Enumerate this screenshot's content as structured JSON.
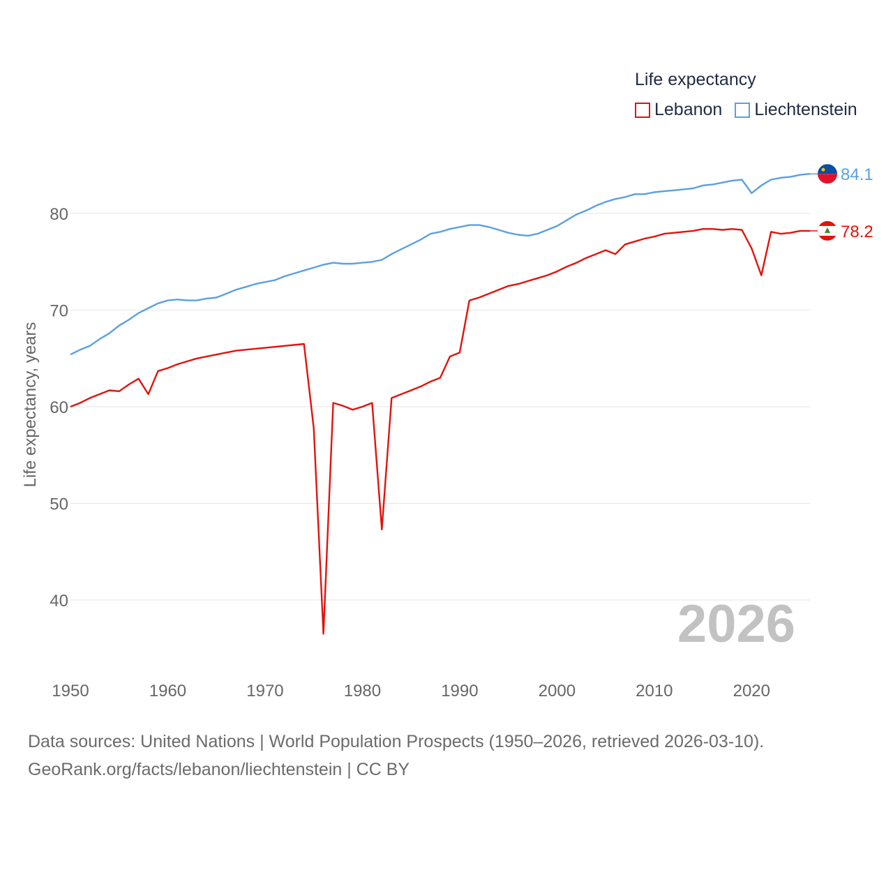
{
  "legend": {
    "title": "Life expectancy",
    "items": [
      {
        "label": "Lebanon",
        "color": "#e3120b"
      },
      {
        "label": "Liechtenstein",
        "color": "#5aa0e0"
      }
    ]
  },
  "source": {
    "line1": "Data sources: United Nations | World Population Prospects (1950–2026, retrieved 2026-03-10).",
    "line2": "GeoRank.org/facts/lebanon/liechtenstein | CC BY"
  },
  "chart_data": {
    "type": "line",
    "title": "Life expectancy",
    "ylabel": "Life expectancy, years",
    "xlabel": "",
    "year_label": "2026",
    "xlim": [
      1950,
      2026
    ],
    "ylim": [
      35,
      88
    ],
    "x_ticks": [
      1950,
      1960,
      1970,
      1980,
      1990,
      2000,
      2010,
      2020
    ],
    "y_ticks": [
      40,
      50,
      60,
      70,
      80
    ],
    "grid": true,
    "legend_position": "top-right",
    "series": [
      {
        "name": "Lebanon",
        "color": "#e3120b",
        "end_label": "78.2",
        "points": [
          [
            1950,
            60.0
          ],
          [
            1951,
            60.4
          ],
          [
            1952,
            60.9
          ],
          [
            1953,
            61.3
          ],
          [
            1954,
            61.7
          ],
          [
            1955,
            61.6
          ],
          [
            1956,
            62.3
          ],
          [
            1957,
            62.9
          ],
          [
            1958,
            61.3
          ],
          [
            1959,
            63.7
          ],
          [
            1960,
            64.0
          ],
          [
            1961,
            64.4
          ],
          [
            1962,
            64.7
          ],
          [
            1963,
            65.0
          ],
          [
            1965,
            65.4
          ],
          [
            1967,
            65.8
          ],
          [
            1974,
            66.5
          ],
          [
            1975,
            57.8
          ],
          [
            1976,
            36.5
          ],
          [
            1977,
            60.4
          ],
          [
            1978,
            60.1
          ],
          [
            1979,
            59.7
          ],
          [
            1980,
            60.0
          ],
          [
            1981,
            60.4
          ],
          [
            1982,
            47.3
          ],
          [
            1983,
            60.9
          ],
          [
            1984,
            61.3
          ],
          [
            1985,
            61.7
          ],
          [
            1986,
            62.1
          ],
          [
            1987,
            62.6
          ],
          [
            1988,
            63.0
          ],
          [
            1989,
            65.2
          ],
          [
            1990,
            65.6
          ],
          [
            1991,
            71.0
          ],
          [
            1992,
            71.3
          ],
          [
            1993,
            71.7
          ],
          [
            1994,
            72.1
          ],
          [
            1995,
            72.5
          ],
          [
            1996,
            72.7
          ],
          [
            1997,
            73.0
          ],
          [
            1998,
            73.3
          ],
          [
            1999,
            73.6
          ],
          [
            2000,
            74.0
          ],
          [
            2001,
            74.5
          ],
          [
            2002,
            74.9
          ],
          [
            2003,
            75.4
          ],
          [
            2004,
            75.8
          ],
          [
            2005,
            76.2
          ],
          [
            2006,
            75.8
          ],
          [
            2007,
            76.8
          ],
          [
            2008,
            77.1
          ],
          [
            2009,
            77.4
          ],
          [
            2010,
            77.6
          ],
          [
            2011,
            77.9
          ],
          [
            2012,
            78.0
          ],
          [
            2013,
            78.1
          ],
          [
            2014,
            78.2
          ],
          [
            2015,
            78.4
          ],
          [
            2016,
            78.4
          ],
          [
            2017,
            78.3
          ],
          [
            2018,
            78.4
          ],
          [
            2019,
            78.3
          ],
          [
            2020,
            76.4
          ],
          [
            2021,
            73.6
          ],
          [
            2022,
            78.1
          ],
          [
            2023,
            77.9
          ],
          [
            2024,
            78.0
          ],
          [
            2025,
            78.2
          ],
          [
            2026,
            78.2
          ]
        ]
      },
      {
        "name": "Liechtenstein",
        "color": "#5aa0e0",
        "end_label": "84.1",
        "points": [
          [
            1950,
            65.4
          ],
          [
            1951,
            65.9
          ],
          [
            1952,
            66.3
          ],
          [
            1953,
            67.0
          ],
          [
            1954,
            67.6
          ],
          [
            1955,
            68.4
          ],
          [
            1956,
            69.0
          ],
          [
            1957,
            69.7
          ],
          [
            1958,
            70.2
          ],
          [
            1959,
            70.7
          ],
          [
            1960,
            71.0
          ],
          [
            1961,
            71.1
          ],
          [
            1962,
            71.0
          ],
          [
            1963,
            71.0
          ],
          [
            1964,
            71.2
          ],
          [
            1965,
            71.3
          ],
          [
            1966,
            71.7
          ],
          [
            1967,
            72.1
          ],
          [
            1968,
            72.4
          ],
          [
            1969,
            72.7
          ],
          [
            1970,
            72.9
          ],
          [
            1971,
            73.1
          ],
          [
            1972,
            73.5
          ],
          [
            1973,
            73.8
          ],
          [
            1974,
            74.1
          ],
          [
            1975,
            74.4
          ],
          [
            1976,
            74.7
          ],
          [
            1977,
            74.9
          ],
          [
            1978,
            74.8
          ],
          [
            1979,
            74.8
          ],
          [
            1980,
            74.9
          ],
          [
            1981,
            75.0
          ],
          [
            1982,
            75.2
          ],
          [
            1983,
            75.8
          ],
          [
            1984,
            76.3
          ],
          [
            1985,
            76.8
          ],
          [
            1986,
            77.3
          ],
          [
            1987,
            77.9
          ],
          [
            1988,
            78.1
          ],
          [
            1989,
            78.4
          ],
          [
            1990,
            78.6
          ],
          [
            1991,
            78.8
          ],
          [
            1992,
            78.8
          ],
          [
            1993,
            78.6
          ],
          [
            1994,
            78.3
          ],
          [
            1995,
            78.0
          ],
          [
            1996,
            77.8
          ],
          [
            1997,
            77.7
          ],
          [
            1998,
            77.9
          ],
          [
            1999,
            78.3
          ],
          [
            2000,
            78.7
          ],
          [
            2001,
            79.3
          ],
          [
            2002,
            79.9
          ],
          [
            2003,
            80.3
          ],
          [
            2004,
            80.8
          ],
          [
            2005,
            81.2
          ],
          [
            2006,
            81.5
          ],
          [
            2007,
            81.7
          ],
          [
            2008,
            82.0
          ],
          [
            2009,
            82.0
          ],
          [
            2010,
            82.2
          ],
          [
            2011,
            82.3
          ],
          [
            2012,
            82.4
          ],
          [
            2013,
            82.5
          ],
          [
            2014,
            82.6
          ],
          [
            2015,
            82.9
          ],
          [
            2016,
            83.0
          ],
          [
            2017,
            83.2
          ],
          [
            2018,
            83.4
          ],
          [
            2019,
            83.5
          ],
          [
            2020,
            82.1
          ],
          [
            2021,
            82.9
          ],
          [
            2022,
            83.5
          ],
          [
            2023,
            83.7
          ],
          [
            2024,
            83.8
          ],
          [
            2025,
            84.0
          ],
          [
            2026,
            84.1
          ]
        ]
      }
    ]
  }
}
